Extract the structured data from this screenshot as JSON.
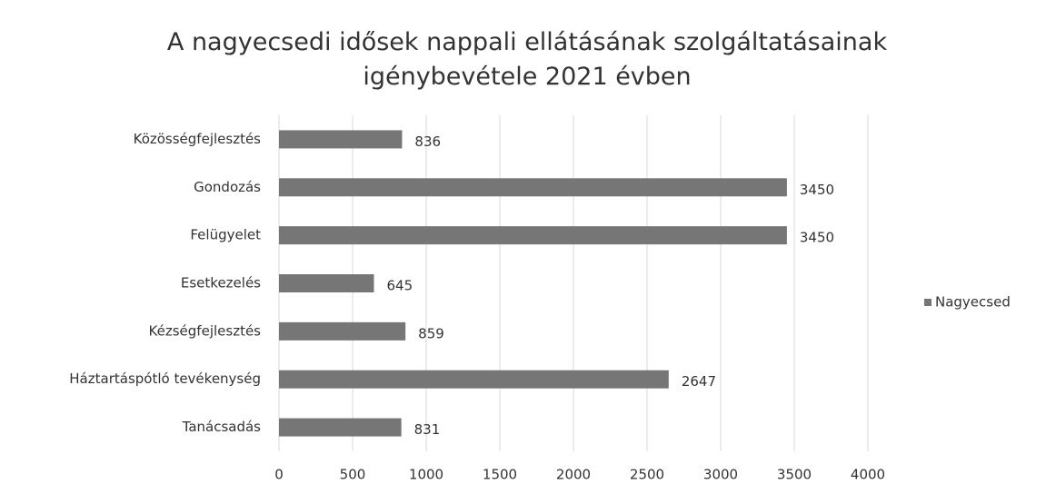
{
  "chart_data": {
    "type": "barh",
    "title": "A nagyecsedi idősek nappali ellátásának szolgáltatásainak igénybevétele 2021 évben",
    "categories": [
      "Közösségfejlesztés",
      "Gondozás",
      "Felügyelet",
      "Esetkezelés",
      "Kézségfejlesztés",
      "Háztartáspótló tevékenység",
      "Tanácsadás"
    ],
    "series": [
      {
        "name": "Nagyecsed",
        "color": "#767676",
        "values": [
          836,
          3450,
          3450,
          645,
          859,
          2647,
          831
        ]
      }
    ],
    "xlim": [
      0,
      4000
    ],
    "xticks": [
      0,
      500,
      1000,
      1500,
      2000,
      2500,
      3000,
      3500,
      4000
    ],
    "grid": true,
    "legend": "right"
  }
}
